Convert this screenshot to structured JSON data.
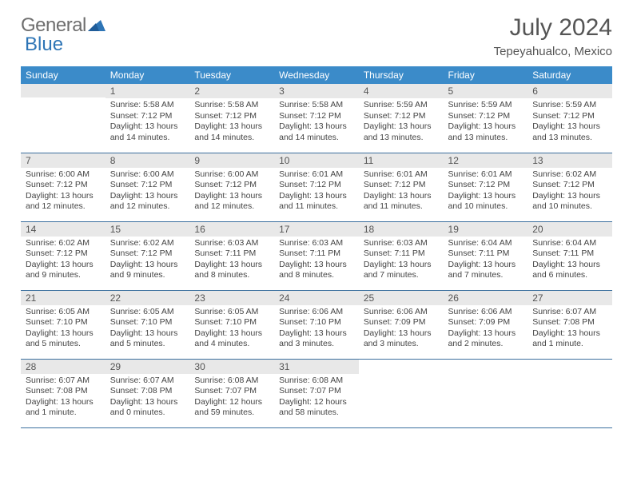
{
  "brand": {
    "word1": "General",
    "word2": "Blue"
  },
  "title": "July 2024",
  "location": "Tepeyahualco, Mexico",
  "colors": {
    "header_bg": "#3b8bc9",
    "header_fg": "#ffffff",
    "row_border": "#3b6f9e",
    "daynum_bg": "#e8e8e8",
    "brand_gray": "#6e6e6e",
    "brand_blue": "#2e75b6"
  },
  "weekdays": [
    "Sunday",
    "Monday",
    "Tuesday",
    "Wednesday",
    "Thursday",
    "Friday",
    "Saturday"
  ],
  "weeks": [
    [
      {
        "n": "",
        "sunrise": "",
        "sunset": "",
        "day1": "",
        "day2": ""
      },
      {
        "n": "1",
        "sunrise": "Sunrise: 5:58 AM",
        "sunset": "Sunset: 7:12 PM",
        "day1": "Daylight: 13 hours",
        "day2": "and 14 minutes."
      },
      {
        "n": "2",
        "sunrise": "Sunrise: 5:58 AM",
        "sunset": "Sunset: 7:12 PM",
        "day1": "Daylight: 13 hours",
        "day2": "and 14 minutes."
      },
      {
        "n": "3",
        "sunrise": "Sunrise: 5:58 AM",
        "sunset": "Sunset: 7:12 PM",
        "day1": "Daylight: 13 hours",
        "day2": "and 14 minutes."
      },
      {
        "n": "4",
        "sunrise": "Sunrise: 5:59 AM",
        "sunset": "Sunset: 7:12 PM",
        "day1": "Daylight: 13 hours",
        "day2": "and 13 minutes."
      },
      {
        "n": "5",
        "sunrise": "Sunrise: 5:59 AM",
        "sunset": "Sunset: 7:12 PM",
        "day1": "Daylight: 13 hours",
        "day2": "and 13 minutes."
      },
      {
        "n": "6",
        "sunrise": "Sunrise: 5:59 AM",
        "sunset": "Sunset: 7:12 PM",
        "day1": "Daylight: 13 hours",
        "day2": "and 13 minutes."
      }
    ],
    [
      {
        "n": "7",
        "sunrise": "Sunrise: 6:00 AM",
        "sunset": "Sunset: 7:12 PM",
        "day1": "Daylight: 13 hours",
        "day2": "and 12 minutes."
      },
      {
        "n": "8",
        "sunrise": "Sunrise: 6:00 AM",
        "sunset": "Sunset: 7:12 PM",
        "day1": "Daylight: 13 hours",
        "day2": "and 12 minutes."
      },
      {
        "n": "9",
        "sunrise": "Sunrise: 6:00 AM",
        "sunset": "Sunset: 7:12 PM",
        "day1": "Daylight: 13 hours",
        "day2": "and 12 minutes."
      },
      {
        "n": "10",
        "sunrise": "Sunrise: 6:01 AM",
        "sunset": "Sunset: 7:12 PM",
        "day1": "Daylight: 13 hours",
        "day2": "and 11 minutes."
      },
      {
        "n": "11",
        "sunrise": "Sunrise: 6:01 AM",
        "sunset": "Sunset: 7:12 PM",
        "day1": "Daylight: 13 hours",
        "day2": "and 11 minutes."
      },
      {
        "n": "12",
        "sunrise": "Sunrise: 6:01 AM",
        "sunset": "Sunset: 7:12 PM",
        "day1": "Daylight: 13 hours",
        "day2": "and 10 minutes."
      },
      {
        "n": "13",
        "sunrise": "Sunrise: 6:02 AM",
        "sunset": "Sunset: 7:12 PM",
        "day1": "Daylight: 13 hours",
        "day2": "and 10 minutes."
      }
    ],
    [
      {
        "n": "14",
        "sunrise": "Sunrise: 6:02 AM",
        "sunset": "Sunset: 7:12 PM",
        "day1": "Daylight: 13 hours",
        "day2": "and 9 minutes."
      },
      {
        "n": "15",
        "sunrise": "Sunrise: 6:02 AM",
        "sunset": "Sunset: 7:12 PM",
        "day1": "Daylight: 13 hours",
        "day2": "and 9 minutes."
      },
      {
        "n": "16",
        "sunrise": "Sunrise: 6:03 AM",
        "sunset": "Sunset: 7:11 PM",
        "day1": "Daylight: 13 hours",
        "day2": "and 8 minutes."
      },
      {
        "n": "17",
        "sunrise": "Sunrise: 6:03 AM",
        "sunset": "Sunset: 7:11 PM",
        "day1": "Daylight: 13 hours",
        "day2": "and 8 minutes."
      },
      {
        "n": "18",
        "sunrise": "Sunrise: 6:03 AM",
        "sunset": "Sunset: 7:11 PM",
        "day1": "Daylight: 13 hours",
        "day2": "and 7 minutes."
      },
      {
        "n": "19",
        "sunrise": "Sunrise: 6:04 AM",
        "sunset": "Sunset: 7:11 PM",
        "day1": "Daylight: 13 hours",
        "day2": "and 7 minutes."
      },
      {
        "n": "20",
        "sunrise": "Sunrise: 6:04 AM",
        "sunset": "Sunset: 7:11 PM",
        "day1": "Daylight: 13 hours",
        "day2": "and 6 minutes."
      }
    ],
    [
      {
        "n": "21",
        "sunrise": "Sunrise: 6:05 AM",
        "sunset": "Sunset: 7:10 PM",
        "day1": "Daylight: 13 hours",
        "day2": "and 5 minutes."
      },
      {
        "n": "22",
        "sunrise": "Sunrise: 6:05 AM",
        "sunset": "Sunset: 7:10 PM",
        "day1": "Daylight: 13 hours",
        "day2": "and 5 minutes."
      },
      {
        "n": "23",
        "sunrise": "Sunrise: 6:05 AM",
        "sunset": "Sunset: 7:10 PM",
        "day1": "Daylight: 13 hours",
        "day2": "and 4 minutes."
      },
      {
        "n": "24",
        "sunrise": "Sunrise: 6:06 AM",
        "sunset": "Sunset: 7:10 PM",
        "day1": "Daylight: 13 hours",
        "day2": "and 3 minutes."
      },
      {
        "n": "25",
        "sunrise": "Sunrise: 6:06 AM",
        "sunset": "Sunset: 7:09 PM",
        "day1": "Daylight: 13 hours",
        "day2": "and 3 minutes."
      },
      {
        "n": "26",
        "sunrise": "Sunrise: 6:06 AM",
        "sunset": "Sunset: 7:09 PM",
        "day1": "Daylight: 13 hours",
        "day2": "and 2 minutes."
      },
      {
        "n": "27",
        "sunrise": "Sunrise: 6:07 AM",
        "sunset": "Sunset: 7:08 PM",
        "day1": "Daylight: 13 hours",
        "day2": "and 1 minute."
      }
    ],
    [
      {
        "n": "28",
        "sunrise": "Sunrise: 6:07 AM",
        "sunset": "Sunset: 7:08 PM",
        "day1": "Daylight: 13 hours",
        "day2": "and 1 minute."
      },
      {
        "n": "29",
        "sunrise": "Sunrise: 6:07 AM",
        "sunset": "Sunset: 7:08 PM",
        "day1": "Daylight: 13 hours",
        "day2": "and 0 minutes."
      },
      {
        "n": "30",
        "sunrise": "Sunrise: 6:08 AM",
        "sunset": "Sunset: 7:07 PM",
        "day1": "Daylight: 12 hours",
        "day2": "and 59 minutes."
      },
      {
        "n": "31",
        "sunrise": "Sunrise: 6:08 AM",
        "sunset": "Sunset: 7:07 PM",
        "day1": "Daylight: 12 hours",
        "day2": "and 58 minutes."
      },
      {
        "n": "",
        "sunrise": "",
        "sunset": "",
        "day1": "",
        "day2": ""
      },
      {
        "n": "",
        "sunrise": "",
        "sunset": "",
        "day1": "",
        "day2": ""
      },
      {
        "n": "",
        "sunrise": "",
        "sunset": "",
        "day1": "",
        "day2": ""
      }
    ]
  ]
}
